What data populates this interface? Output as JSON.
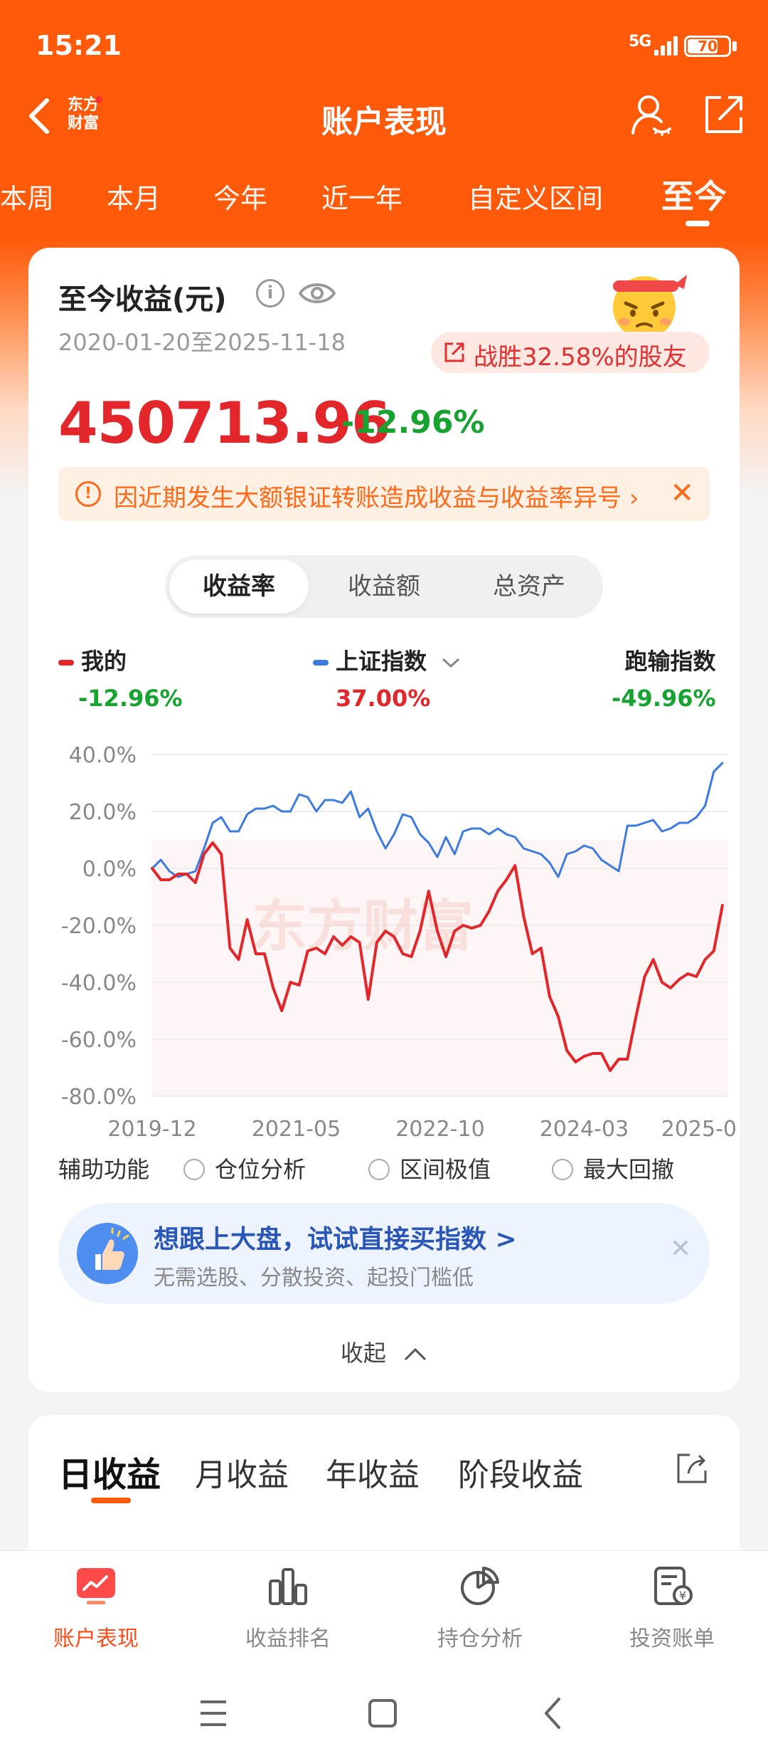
{
  "status_bar": {
    "time": "15:21",
    "network": "5G",
    "battery": "70"
  },
  "header": {
    "logo_text": "东方\n财富",
    "title": "账户表现"
  },
  "period_tabs": [
    {
      "label": "本周"
    },
    {
      "label": "本月"
    },
    {
      "label": "今年"
    },
    {
      "label": "近一年"
    },
    {
      "label": "自定义区间"
    },
    {
      "label": "至今",
      "active": true
    }
  ],
  "summary": {
    "title": "至今收益(元)",
    "date_range": "2020-01-20至2025-11-18",
    "beat_text": "战胜32.58%的股友",
    "total_value": "450713.96",
    "total_rate": "-12.96%",
    "notice": "因近期发生大额银证转账造成收益与收益率异号",
    "notice_arrow": "›",
    "notice_close": "✕"
  },
  "segments": [
    {
      "label": "收益率",
      "active": true
    },
    {
      "label": "收益额"
    },
    {
      "label": "总资产"
    }
  ],
  "legend": [
    {
      "name": "我的",
      "value": "-12.96%",
      "color": "#e3262a",
      "value_color": "#17a330"
    },
    {
      "name": "上证指数",
      "value": "37.00%",
      "color": "#3b7be0",
      "value_color": "#e3262a"
    },
    {
      "name": "跑输指数",
      "value": "-49.96%",
      "value_color": "#17a330"
    }
  ],
  "chart_data": {
    "type": "line",
    "x_ticks": [
      "2019-12",
      "2021-05",
      "2022-10",
      "2024-03",
      "2025-0"
    ],
    "y_ticks": [
      "40.0%",
      "20.0%",
      "0.0%",
      "-20.0%",
      "-40.0%",
      "-60.0%",
      "-80.0%"
    ],
    "ylim": [
      -80,
      40
    ],
    "xlim": [
      0,
      100
    ],
    "watermark": "东方财富",
    "series": [
      {
        "name": "我的",
        "color": "#e3262a",
        "x": [
          0,
          1.5,
          3,
          4.5,
          6,
          7.5,
          9,
          10.5,
          12,
          13.5,
          15,
          16.5,
          18,
          19.5,
          21,
          22.5,
          24,
          25.5,
          27,
          28.5,
          30,
          31.5,
          33,
          34.5,
          36,
          37.5,
          39,
          40.5,
          42,
          43.5,
          45,
          46.5,
          48,
          49.5,
          51,
          52.5,
          54,
          55.5,
          57,
          58.5,
          60,
          61.5,
          63,
          64.5,
          66,
          67.5,
          69,
          70.5,
          72,
          73.5,
          75,
          76.5,
          78,
          79.5,
          81,
          82.5,
          84,
          85.5,
          87,
          88.5,
          90,
          91.5,
          93,
          94.5,
          96,
          97.5,
          99
        ],
        "y": [
          0,
          -4,
          -4,
          -2,
          -2,
          -5,
          5,
          9,
          5,
          -28,
          -32,
          -18,
          -30,
          -30,
          -42,
          -50,
          -40,
          -41,
          -29,
          -28,
          -30,
          -24,
          -27,
          -24,
          -26,
          -46,
          -26,
          -22,
          -24,
          -30,
          -31,
          -22,
          -8,
          -22,
          -31,
          -22,
          -20,
          -21,
          -20,
          -15,
          -8,
          -4,
          1,
          -17,
          -30,
          -28,
          -45,
          -52,
          -64,
          -68,
          -66,
          -65,
          -65,
          -71,
          -67,
          -67,
          -52,
          -38,
          -32,
          -40,
          -42,
          -39,
          -37,
          -38,
          -32,
          -29,
          -13
        ]
      },
      {
        "name": "上证指数",
        "color": "#3b7be0",
        "x": [
          0,
          1.5,
          3,
          4.5,
          6,
          7.5,
          9,
          10.5,
          12,
          13.5,
          15,
          16.5,
          18,
          19.5,
          21,
          22.5,
          24,
          25.5,
          27,
          28.5,
          30,
          31.5,
          33,
          34.5,
          36,
          37.5,
          39,
          40.5,
          42,
          43.5,
          45,
          46.5,
          48,
          49.5,
          51,
          52.5,
          54,
          55.5,
          57,
          58.5,
          60,
          61.5,
          63,
          64.5,
          66,
          67.5,
          69,
          70.5,
          72,
          73.5,
          75,
          76.5,
          78,
          79.5,
          81,
          82.5,
          84,
          85.5,
          87,
          88.5,
          90,
          91.5,
          93,
          94.5,
          96,
          97.5,
          99
        ],
        "y": [
          0,
          3,
          -1,
          -3,
          -2,
          -1,
          7,
          16,
          18,
          13,
          13,
          19,
          21,
          21,
          22,
          20,
          20,
          26,
          25,
          20,
          24,
          24,
          23,
          27,
          18,
          21,
          13,
          7,
          12,
          19,
          18,
          12,
          9,
          4,
          11,
          5,
          13,
          14,
          14,
          12,
          14,
          12,
          11,
          7,
          6,
          5,
          2,
          -3,
          5,
          6,
          8,
          7,
          3,
          1,
          -1,
          15,
          15,
          16,
          17,
          13,
          14,
          16,
          16,
          18,
          22,
          34,
          37
        ]
      }
    ]
  },
  "aux": {
    "label": "辅助功能",
    "options": [
      {
        "label": "仓位分析"
      },
      {
        "label": "区间极值"
      },
      {
        "label": "最大回撤"
      }
    ]
  },
  "promo": {
    "title": "想跟上大盘，试试直接买指数 >",
    "subtitle": "无需选股、分散投资、起投门槛低",
    "close": "✕"
  },
  "collapse_label": "收起",
  "returns_tabs": [
    {
      "label": "日收益",
      "active": true
    },
    {
      "label": "月收益"
    },
    {
      "label": "年收益"
    },
    {
      "label": "阶段收益"
    }
  ],
  "bottom_nav": [
    {
      "label": "账户表现",
      "active": true,
      "icon": "account-performance-icon"
    },
    {
      "label": "收益排名",
      "icon": "ranking-bars-icon"
    },
    {
      "label": "持仓分析",
      "icon": "pie-chart-icon"
    },
    {
      "label": "投资账单",
      "icon": "bill-icon"
    }
  ]
}
